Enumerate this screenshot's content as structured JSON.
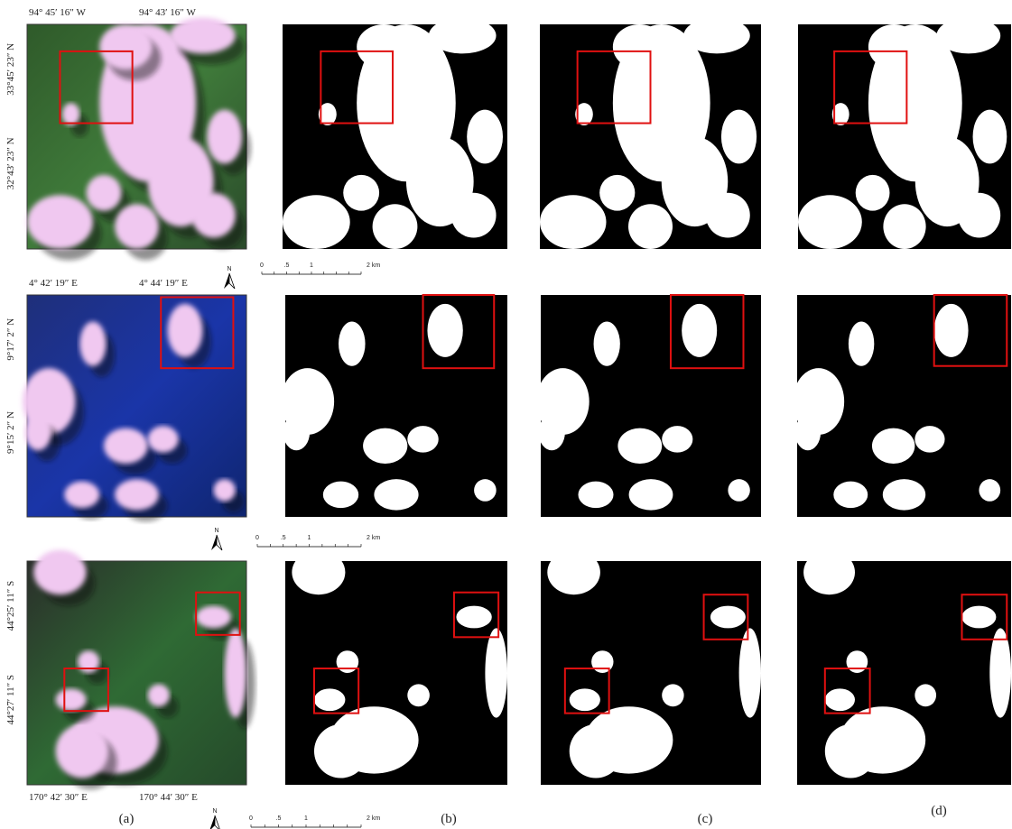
{
  "rows": [
    {
      "lon_labels": [
        "94° 45′ 16″ W",
        "94° 43′ 16″ W"
      ],
      "lat_labels": [
        "33°45′ 23″ N",
        "32°43′ 23″ N"
      ],
      "north": "N",
      "scale_labels": [
        "0",
        ".5",
        "1",
        "2 km"
      ]
    },
    {
      "lon_labels": [
        "4° 42′ 19″ E",
        "4° 44′ 19″ E"
      ],
      "lat_labels": [
        "9°17′ 2″ N",
        "9°15′ 2″ N"
      ],
      "north": "N",
      "scale_labels": [
        "0",
        ".5",
        "1",
        "2 km"
      ]
    },
    {
      "lon_labels": [
        "170° 42′ 30″ E",
        "170° 44′ 30″ E"
      ],
      "lat_labels": [
        "44°25′ 11″ S",
        "44°27′ 11″ S"
      ],
      "north": "N",
      "scale_labels": [
        "0",
        ".5",
        "1",
        "2 km"
      ]
    }
  ],
  "panel_labels": [
    "(a)",
    "(b)",
    "(c)",
    "(d)"
  ]
}
